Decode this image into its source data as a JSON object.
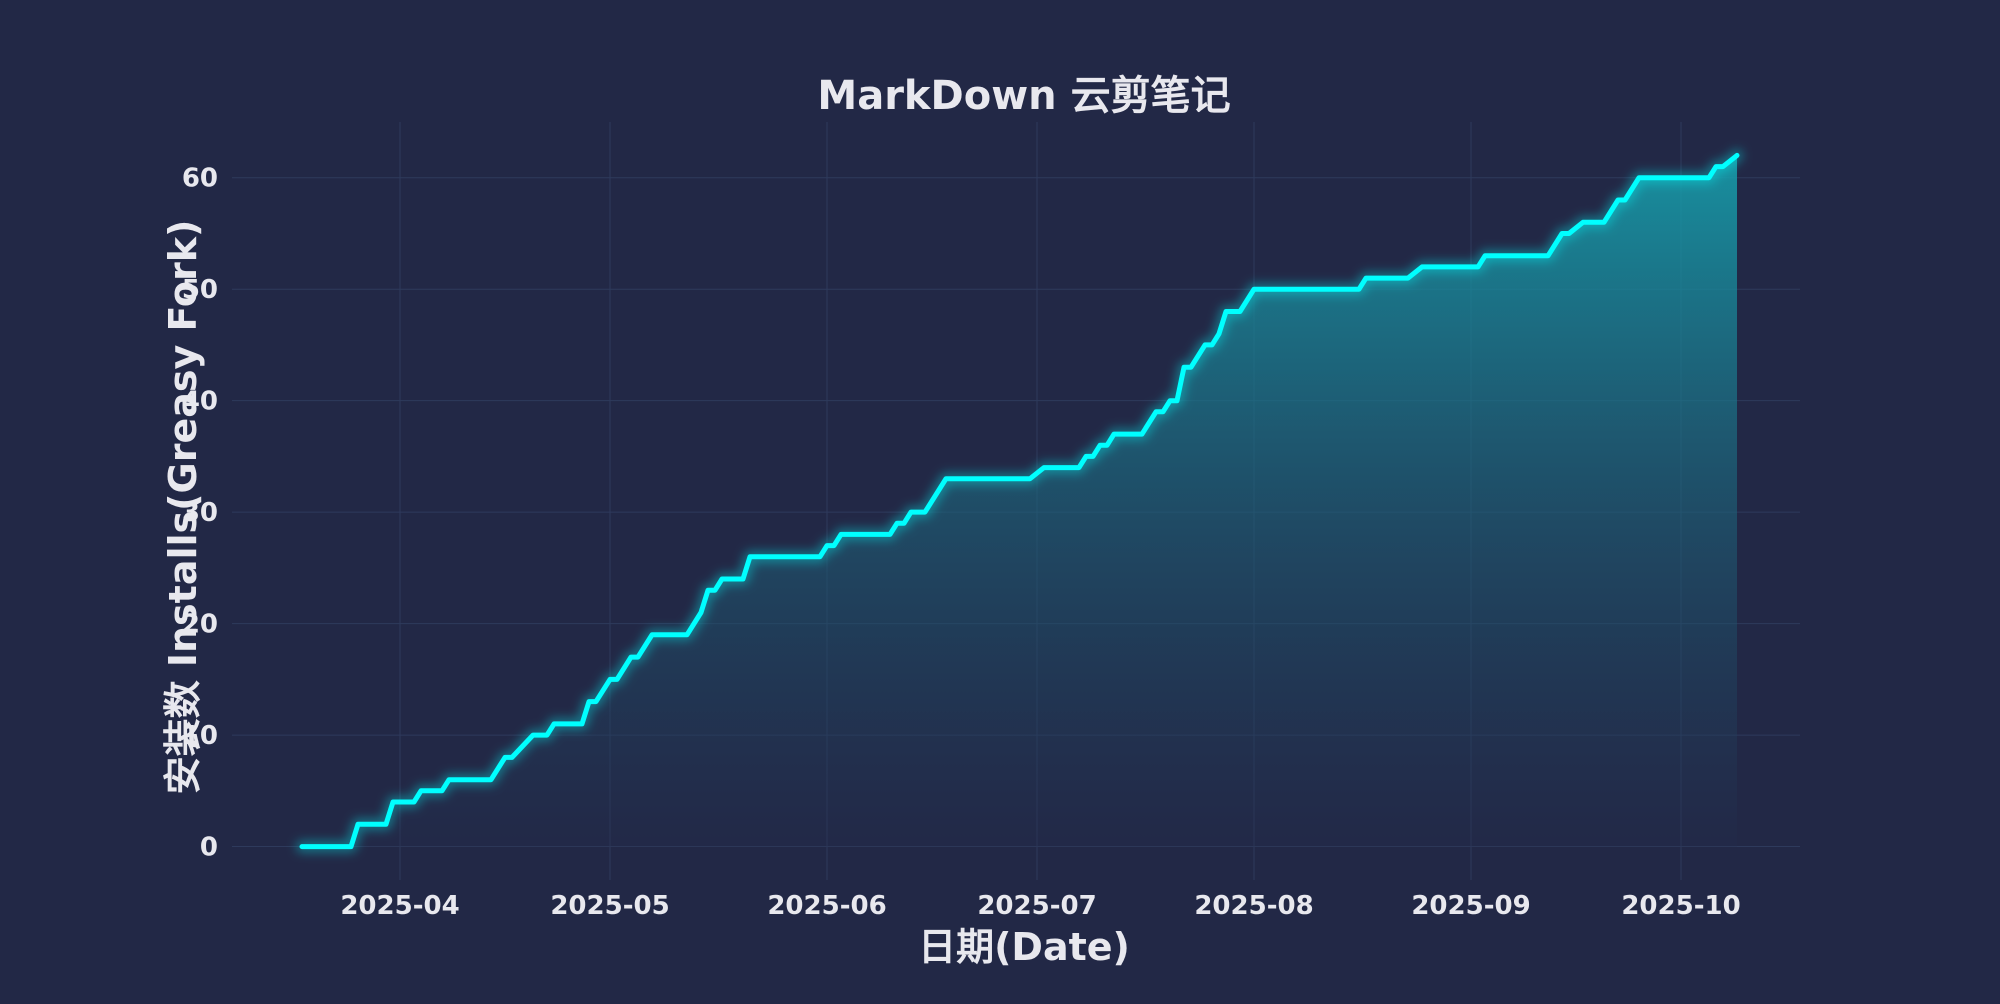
{
  "colors": {
    "background": "#222846",
    "grid": "#2e3a5c",
    "line": "#00ffff",
    "fill_top": "#16a3b0",
    "fill_bottom": "#232a4a",
    "text": "#e8e8ee"
  },
  "chart_data": {
    "type": "area",
    "title": "MarkDown 云剪笔记",
    "xlabel": "日期(Date)",
    "ylabel": "安装数 Installs(Greasy Fork)",
    "xlim": [
      "2025-03-08",
      "2025-10-18"
    ],
    "ylim": [
      -3,
      65
    ],
    "x_ticks": [
      {
        "date": "2025-04-01",
        "label": "2025-04"
      },
      {
        "date": "2025-05-01",
        "label": "2025-05"
      },
      {
        "date": "2025-06-01",
        "label": "2025-06"
      },
      {
        "date": "2025-07-01",
        "label": "2025-07"
      },
      {
        "date": "2025-08-01",
        "label": "2025-08"
      },
      {
        "date": "2025-09-01",
        "label": "2025-09"
      },
      {
        "date": "2025-10-01",
        "label": "2025-10"
      }
    ],
    "y_ticks": [
      0,
      10,
      20,
      30,
      40,
      50,
      60
    ],
    "grid": true,
    "series": [
      {
        "points": [
          [
            "2025-03-18",
            0
          ],
          [
            "2025-03-25",
            0
          ],
          [
            "2025-03-26",
            2
          ],
          [
            "2025-03-30",
            2
          ],
          [
            "2025-03-31",
            4
          ],
          [
            "2025-04-03",
            4
          ],
          [
            "2025-04-04",
            5
          ],
          [
            "2025-04-07",
            5
          ],
          [
            "2025-04-08",
            6
          ],
          [
            "2025-04-14",
            6
          ],
          [
            "2025-04-16",
            8
          ],
          [
            "2025-04-17",
            8
          ],
          [
            "2025-04-20",
            10
          ],
          [
            "2025-04-22",
            10
          ],
          [
            "2025-04-23",
            11
          ],
          [
            "2025-04-27",
            11
          ],
          [
            "2025-04-28",
            13
          ],
          [
            "2025-04-29",
            13
          ],
          [
            "2025-05-01",
            15
          ],
          [
            "2025-05-02",
            15
          ],
          [
            "2025-05-04",
            17
          ],
          [
            "2025-05-05",
            17
          ],
          [
            "2025-05-07",
            19
          ],
          [
            "2025-05-12",
            19
          ],
          [
            "2025-05-14",
            21
          ],
          [
            "2025-05-15",
            23
          ],
          [
            "2025-05-16",
            23
          ],
          [
            "2025-05-17",
            24
          ],
          [
            "2025-05-20",
            24
          ],
          [
            "2025-05-21",
            26
          ],
          [
            "2025-05-31",
            26
          ],
          [
            "2025-06-01",
            27
          ],
          [
            "2025-06-02",
            27
          ],
          [
            "2025-06-03",
            28
          ],
          [
            "2025-06-10",
            28
          ],
          [
            "2025-06-11",
            29
          ],
          [
            "2025-06-12",
            29
          ],
          [
            "2025-06-13",
            30
          ],
          [
            "2025-06-15",
            30
          ],
          [
            "2025-06-18",
            33
          ],
          [
            "2025-06-30",
            33
          ],
          [
            "2025-07-02",
            34
          ],
          [
            "2025-07-07",
            34
          ],
          [
            "2025-07-08",
            35
          ],
          [
            "2025-07-09",
            35
          ],
          [
            "2025-07-10",
            36
          ],
          [
            "2025-07-11",
            36
          ],
          [
            "2025-07-12",
            37
          ],
          [
            "2025-07-16",
            37
          ],
          [
            "2025-07-18",
            39
          ],
          [
            "2025-07-19",
            39
          ],
          [
            "2025-07-20",
            40
          ],
          [
            "2025-07-21",
            40
          ],
          [
            "2025-07-22",
            43
          ],
          [
            "2025-07-23",
            43
          ],
          [
            "2025-07-25",
            45
          ],
          [
            "2025-07-26",
            45
          ],
          [
            "2025-07-27",
            46
          ],
          [
            "2025-07-28",
            48
          ],
          [
            "2025-07-30",
            48
          ],
          [
            "2025-08-01",
            50
          ],
          [
            "2025-08-16",
            50
          ],
          [
            "2025-08-17",
            51
          ],
          [
            "2025-08-23",
            51
          ],
          [
            "2025-08-25",
            52
          ],
          [
            "2025-09-02",
            52
          ],
          [
            "2025-09-03",
            53
          ],
          [
            "2025-09-12",
            53
          ],
          [
            "2025-09-14",
            55
          ],
          [
            "2025-09-15",
            55
          ],
          [
            "2025-09-17",
            56
          ],
          [
            "2025-09-20",
            56
          ],
          [
            "2025-09-22",
            58
          ],
          [
            "2025-09-23",
            58
          ],
          [
            "2025-09-25",
            60
          ],
          [
            "2025-10-05",
            60
          ],
          [
            "2025-10-06",
            61
          ],
          [
            "2025-10-07",
            61
          ],
          [
            "2025-10-09",
            62
          ]
        ]
      }
    ]
  }
}
